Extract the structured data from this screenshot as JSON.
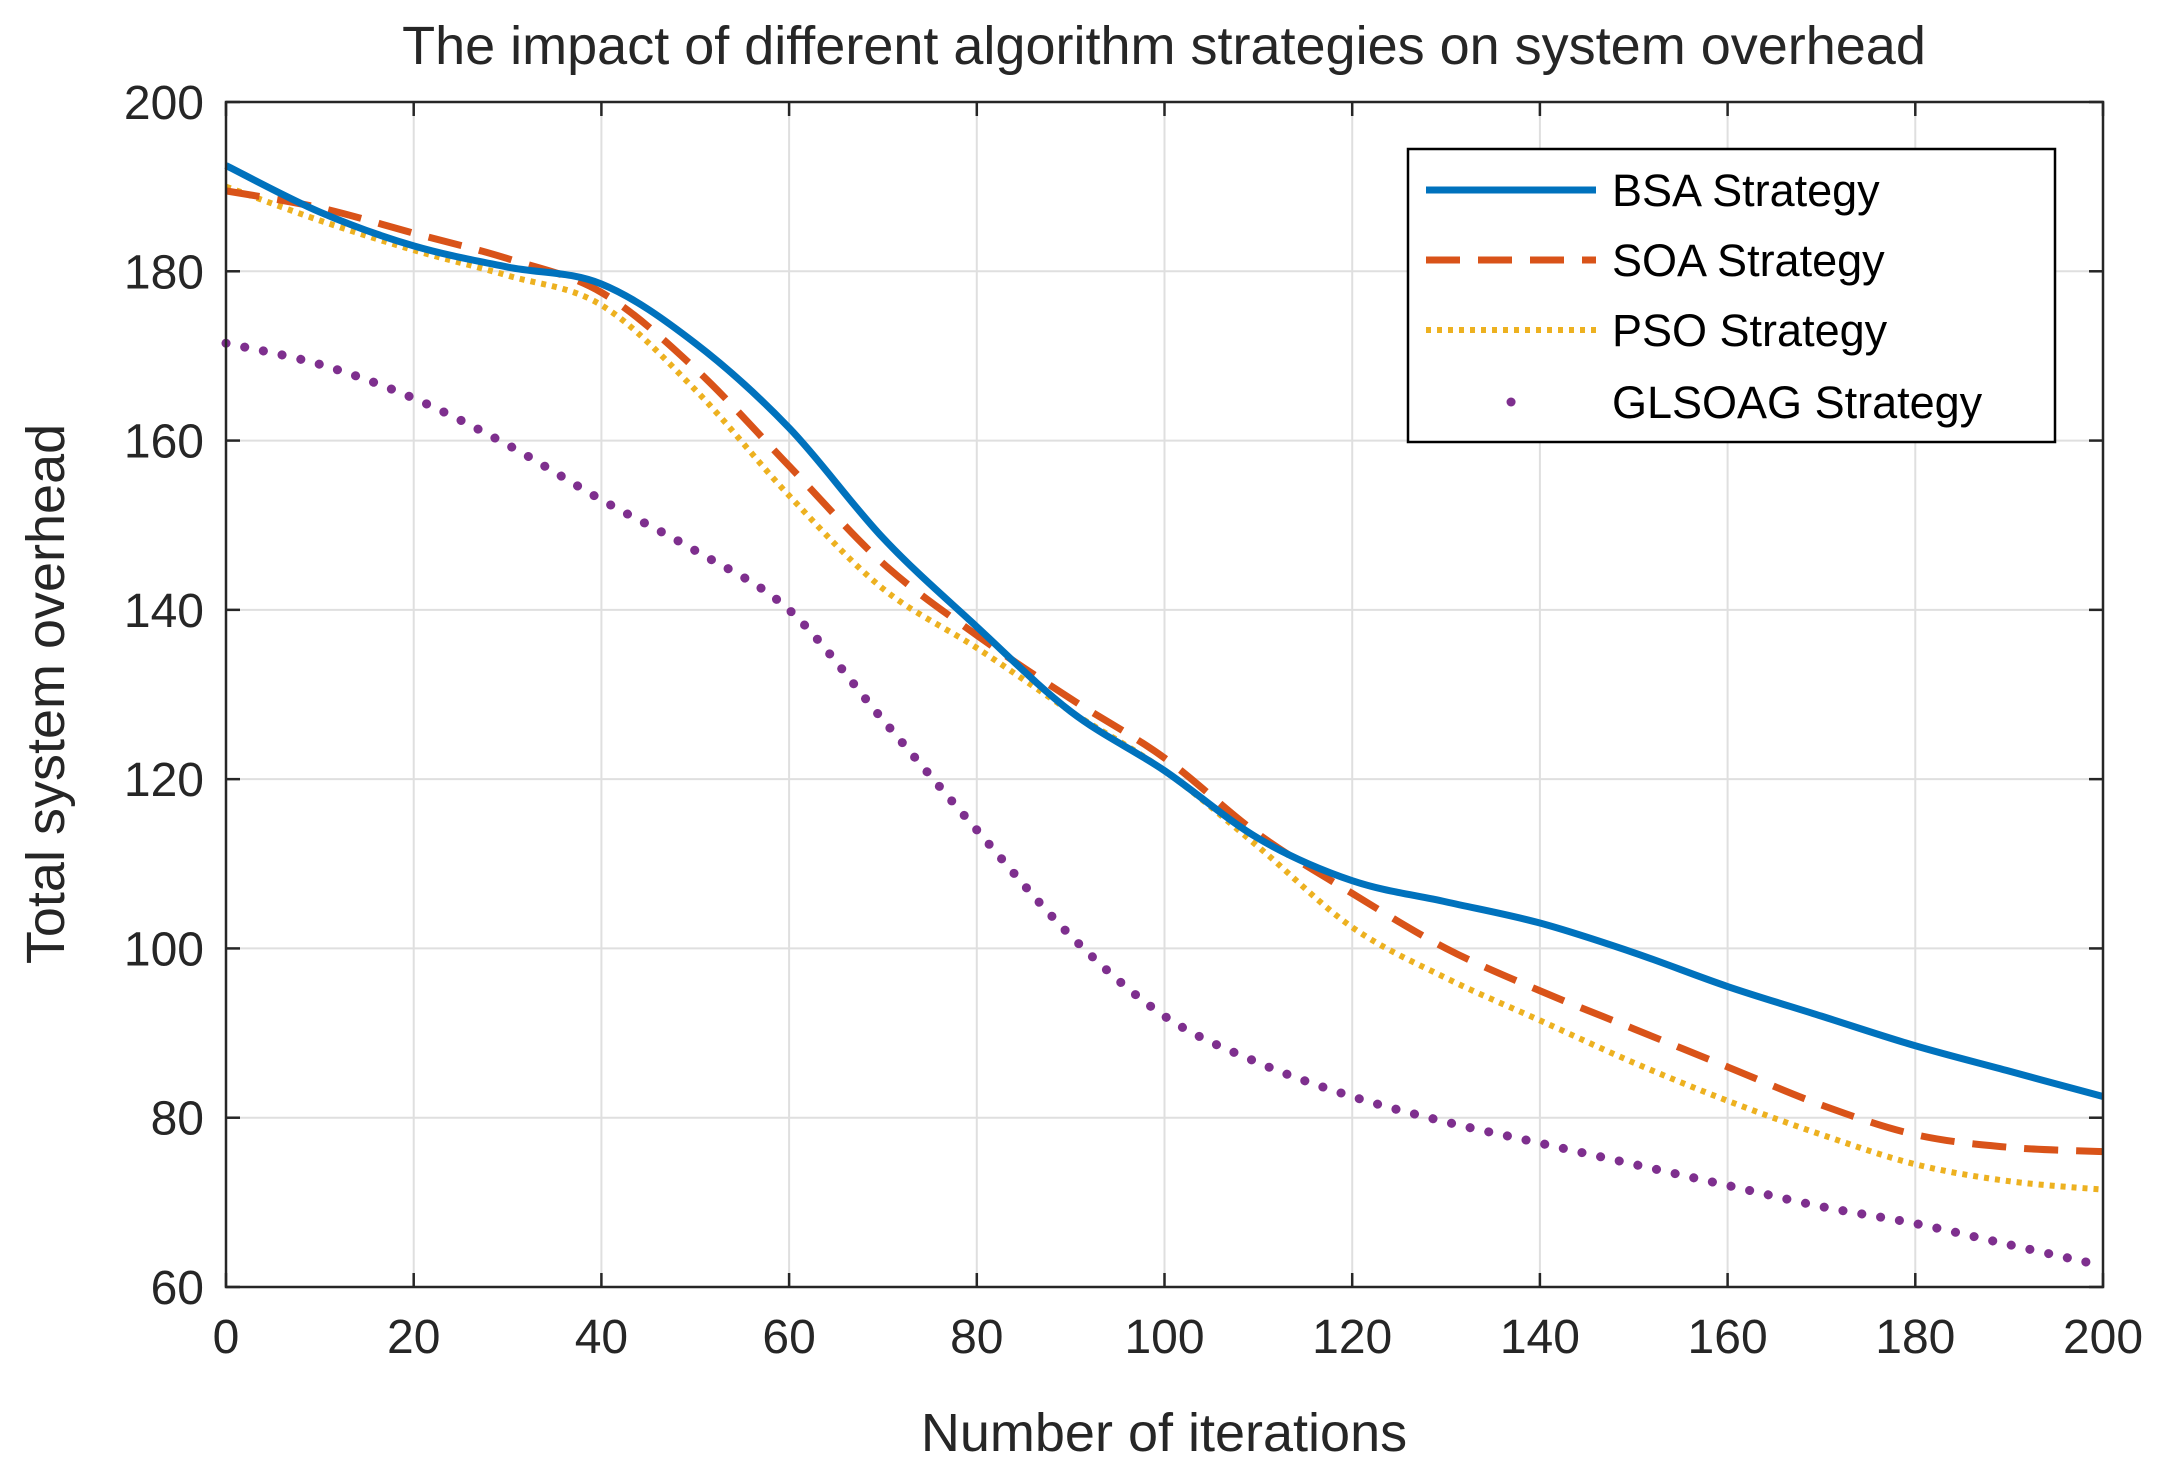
{
  "chart_data": {
    "type": "line",
    "title": "The impact of different algorithm strategies on system overhead",
    "xlabel": "Number of iterations",
    "ylabel": "Total system overhead",
    "xlim": [
      0,
      200
    ],
    "ylim": [
      60,
      200
    ],
    "xticks": [
      "0",
      "20",
      "40",
      "60",
      "80",
      "100",
      "120",
      "140",
      "160",
      "180",
      "200"
    ],
    "yticks": [
      "60",
      "80",
      "100",
      "120",
      "140",
      "160",
      "180",
      "200"
    ],
    "grid": true,
    "legend_position": "top-right",
    "x": [
      0,
      10,
      20,
      30,
      40,
      50,
      60,
      70,
      80,
      90,
      100,
      110,
      120,
      130,
      140,
      150,
      160,
      170,
      180,
      190,
      200
    ],
    "series": [
      {
        "name": "BSA Strategy",
        "style": "solid",
        "color": "#0072bd",
        "values": [
          192.5,
          187.0,
          183.0,
          180.5,
          178.5,
          171.5,
          161.5,
          148.5,
          138.0,
          128.0,
          121.0,
          113.0,
          108.0,
          105.5,
          103.0,
          99.5,
          95.5,
          92.0,
          88.5,
          85.5,
          82.5
        ]
      },
      {
        "name": "SOA Strategy",
        "style": "dashed",
        "color": "#d95319",
        "values": [
          189.5,
          187.5,
          184.5,
          181.5,
          177.5,
          168.5,
          157.0,
          145.5,
          137.0,
          129.5,
          122.5,
          113.5,
          106.5,
          100.0,
          95.0,
          90.5,
          86.0,
          81.5,
          78.0,
          76.5,
          76.0
        ]
      },
      {
        "name": "PSO Strategy",
        "style": "dotted",
        "color": "#edb120",
        "values": [
          190.0,
          186.0,
          182.5,
          179.5,
          176.0,
          166.0,
          153.5,
          142.5,
          135.5,
          128.0,
          121.0,
          112.0,
          102.5,
          96.5,
          91.5,
          86.5,
          82.0,
          78.0,
          74.5,
          72.5,
          71.5
        ]
      },
      {
        "name": "GLSOAG Strategy",
        "style": "markers",
        "color": "#7e2f8e",
        "values": [
          171.5,
          169.0,
          165.0,
          159.5,
          153.0,
          147.0,
          140.0,
          127.0,
          114.0,
          101.5,
          92.0,
          86.5,
          82.5,
          79.5,
          77.0,
          74.5,
          72.0,
          69.5,
          67.5,
          65.0,
          62.5
        ]
      }
    ]
  }
}
